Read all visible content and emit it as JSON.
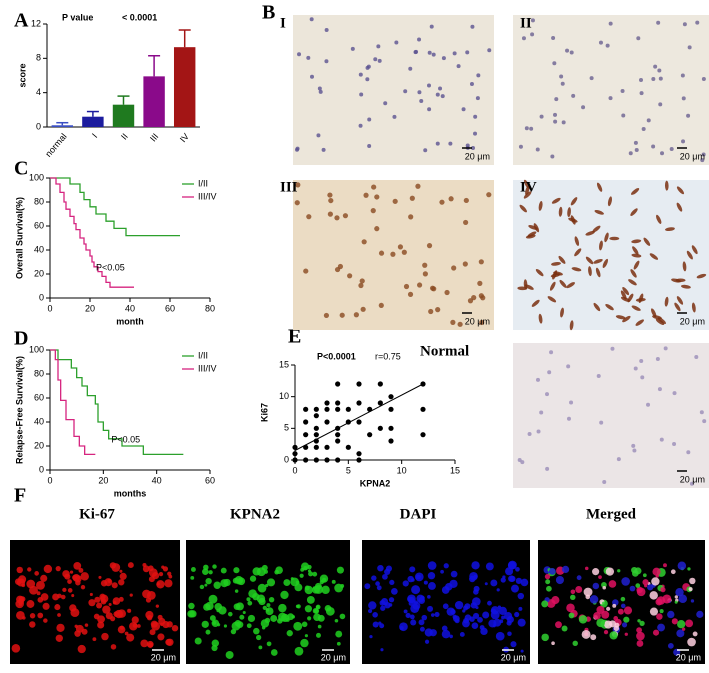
{
  "panel_letters": [
    "A",
    "B",
    "C",
    "D",
    "E",
    "F"
  ],
  "histology": [
    {
      "label": "I",
      "scale_bar": "20 μm"
    },
    {
      "label": "II",
      "scale_bar": "20 μm"
    },
    {
      "label": "III",
      "scale_bar": "20 μm"
    },
    {
      "label": "IV",
      "scale_bar": "20 μm"
    },
    {
      "label": "Normal",
      "scale_bar": "20 μm"
    }
  ],
  "fluorescence": [
    {
      "title": "Ki-67",
      "scale_bar": "20 μm"
    },
    {
      "title": "KPNA2",
      "scale_bar": "20 μm"
    },
    {
      "title": "DAPI",
      "scale_bar": "20 μm"
    },
    {
      "title": "Merged",
      "scale_bar": "20 μm"
    }
  ],
  "chart_data": [
    {
      "type": "bar",
      "ylabel": "score",
      "p_label": "P value",
      "p_value": "< 0.0001",
      "categories": [
        "normal",
        "I",
        "II",
        "III",
        "IV"
      ],
      "values": [
        0.2,
        1.2,
        2.6,
        5.9,
        9.3
      ],
      "errors": [
        0.3,
        0.6,
        1.0,
        2.4,
        2.0
      ],
      "colors": [
        "#3a4fc4",
        "#1c1c9e",
        "#1f7a1f",
        "#8a0a8a",
        "#a31515"
      ],
      "ylim": [
        0,
        12
      ],
      "yticks": [
        0,
        4,
        8,
        12
      ]
    },
    {
      "type": "step",
      "xlabel": "month",
      "ylabel": "Overall Survival(%)",
      "annotation": "P<0.05",
      "xlim": [
        0,
        80
      ],
      "xticks": [
        0,
        20,
        40,
        60,
        80
      ],
      "ylim": [
        0,
        100
      ],
      "yticks": [
        0,
        20,
        40,
        60,
        80,
        100
      ],
      "series": [
        {
          "name": "I/II",
          "color": "#2ca02c",
          "x": [
            0,
            7,
            10,
            15,
            17,
            20,
            23,
            28,
            32,
            38,
            65
          ],
          "values": [
            100,
            100,
            95,
            88,
            82,
            76,
            70,
            64,
            58,
            52,
            52
          ]
        },
        {
          "name": "III/IV",
          "color": "#d6247f",
          "x": [
            0,
            3,
            5,
            7,
            8,
            10,
            12,
            13,
            15,
            17,
            18,
            20,
            21,
            22,
            24,
            26,
            28,
            30,
            42
          ],
          "values": [
            100,
            95,
            88,
            80,
            74,
            68,
            62,
            57,
            50,
            45,
            40,
            35,
            30,
            26,
            22,
            18,
            13,
            9,
            9
          ]
        }
      ]
    },
    {
      "type": "step",
      "xlabel": "months",
      "ylabel": "Relapse-Free Survival(%)",
      "annotation": "P<0.05",
      "xlim": [
        0,
        60
      ],
      "xticks": [
        0,
        20,
        40,
        60
      ],
      "ylim": [
        0,
        100
      ],
      "yticks": [
        0,
        20,
        40,
        60,
        80,
        100
      ],
      "series": [
        {
          "name": "I/II",
          "color": "#2ca02c",
          "x": [
            0,
            3,
            8,
            10,
            12,
            14,
            17,
            18,
            20,
            22,
            27,
            35,
            50
          ],
          "values": [
            100,
            92,
            85,
            77,
            70,
            62,
            55,
            40,
            33,
            26,
            20,
            13,
            13
          ]
        },
        {
          "name": "III/IV",
          "color": "#d6247f",
          "x": [
            0,
            2,
            3,
            4,
            6,
            9,
            11,
            13,
            17
          ],
          "values": [
            100,
            92,
            75,
            58,
            42,
            28,
            20,
            13,
            13
          ]
        }
      ]
    },
    {
      "type": "scatter",
      "xlabel": "KPNA2",
      "ylabel": "Ki67",
      "p_value": "P<0.0001",
      "r": "r=0.75",
      "xlim": [
        0,
        15
      ],
      "xticks": [
        0,
        5,
        10,
        15
      ],
      "ylim": [
        0,
        15
      ],
      "yticks": [
        0,
        5,
        10,
        15
      ],
      "x": [
        0,
        0,
        0,
        1,
        1,
        1,
        1,
        1,
        2,
        2,
        2,
        2,
        2,
        2,
        2,
        3,
        3,
        3,
        3,
        3,
        4,
        4,
        4,
        4,
        4,
        4,
        4,
        5,
        5,
        5,
        6,
        6,
        6,
        6,
        6,
        7,
        7,
        8,
        8,
        8,
        9,
        9,
        9,
        9,
        12,
        12,
        12
      ],
      "values": [
        0,
        1,
        2,
        0,
        2,
        4,
        6,
        8,
        0,
        2,
        3,
        4,
        5,
        7,
        8,
        0,
        2,
        6,
        8,
        9,
        0,
        3,
        4,
        5,
        8,
        9,
        12,
        2,
        6,
        8,
        0,
        1,
        6,
        9,
        12,
        4,
        8,
        5,
        9,
        12,
        3,
        5,
        8,
        10,
        4,
        8,
        12
      ],
      "fit": {
        "x": [
          0,
          12
        ],
        "values": [
          1.5,
          12
        ]
      }
    }
  ]
}
